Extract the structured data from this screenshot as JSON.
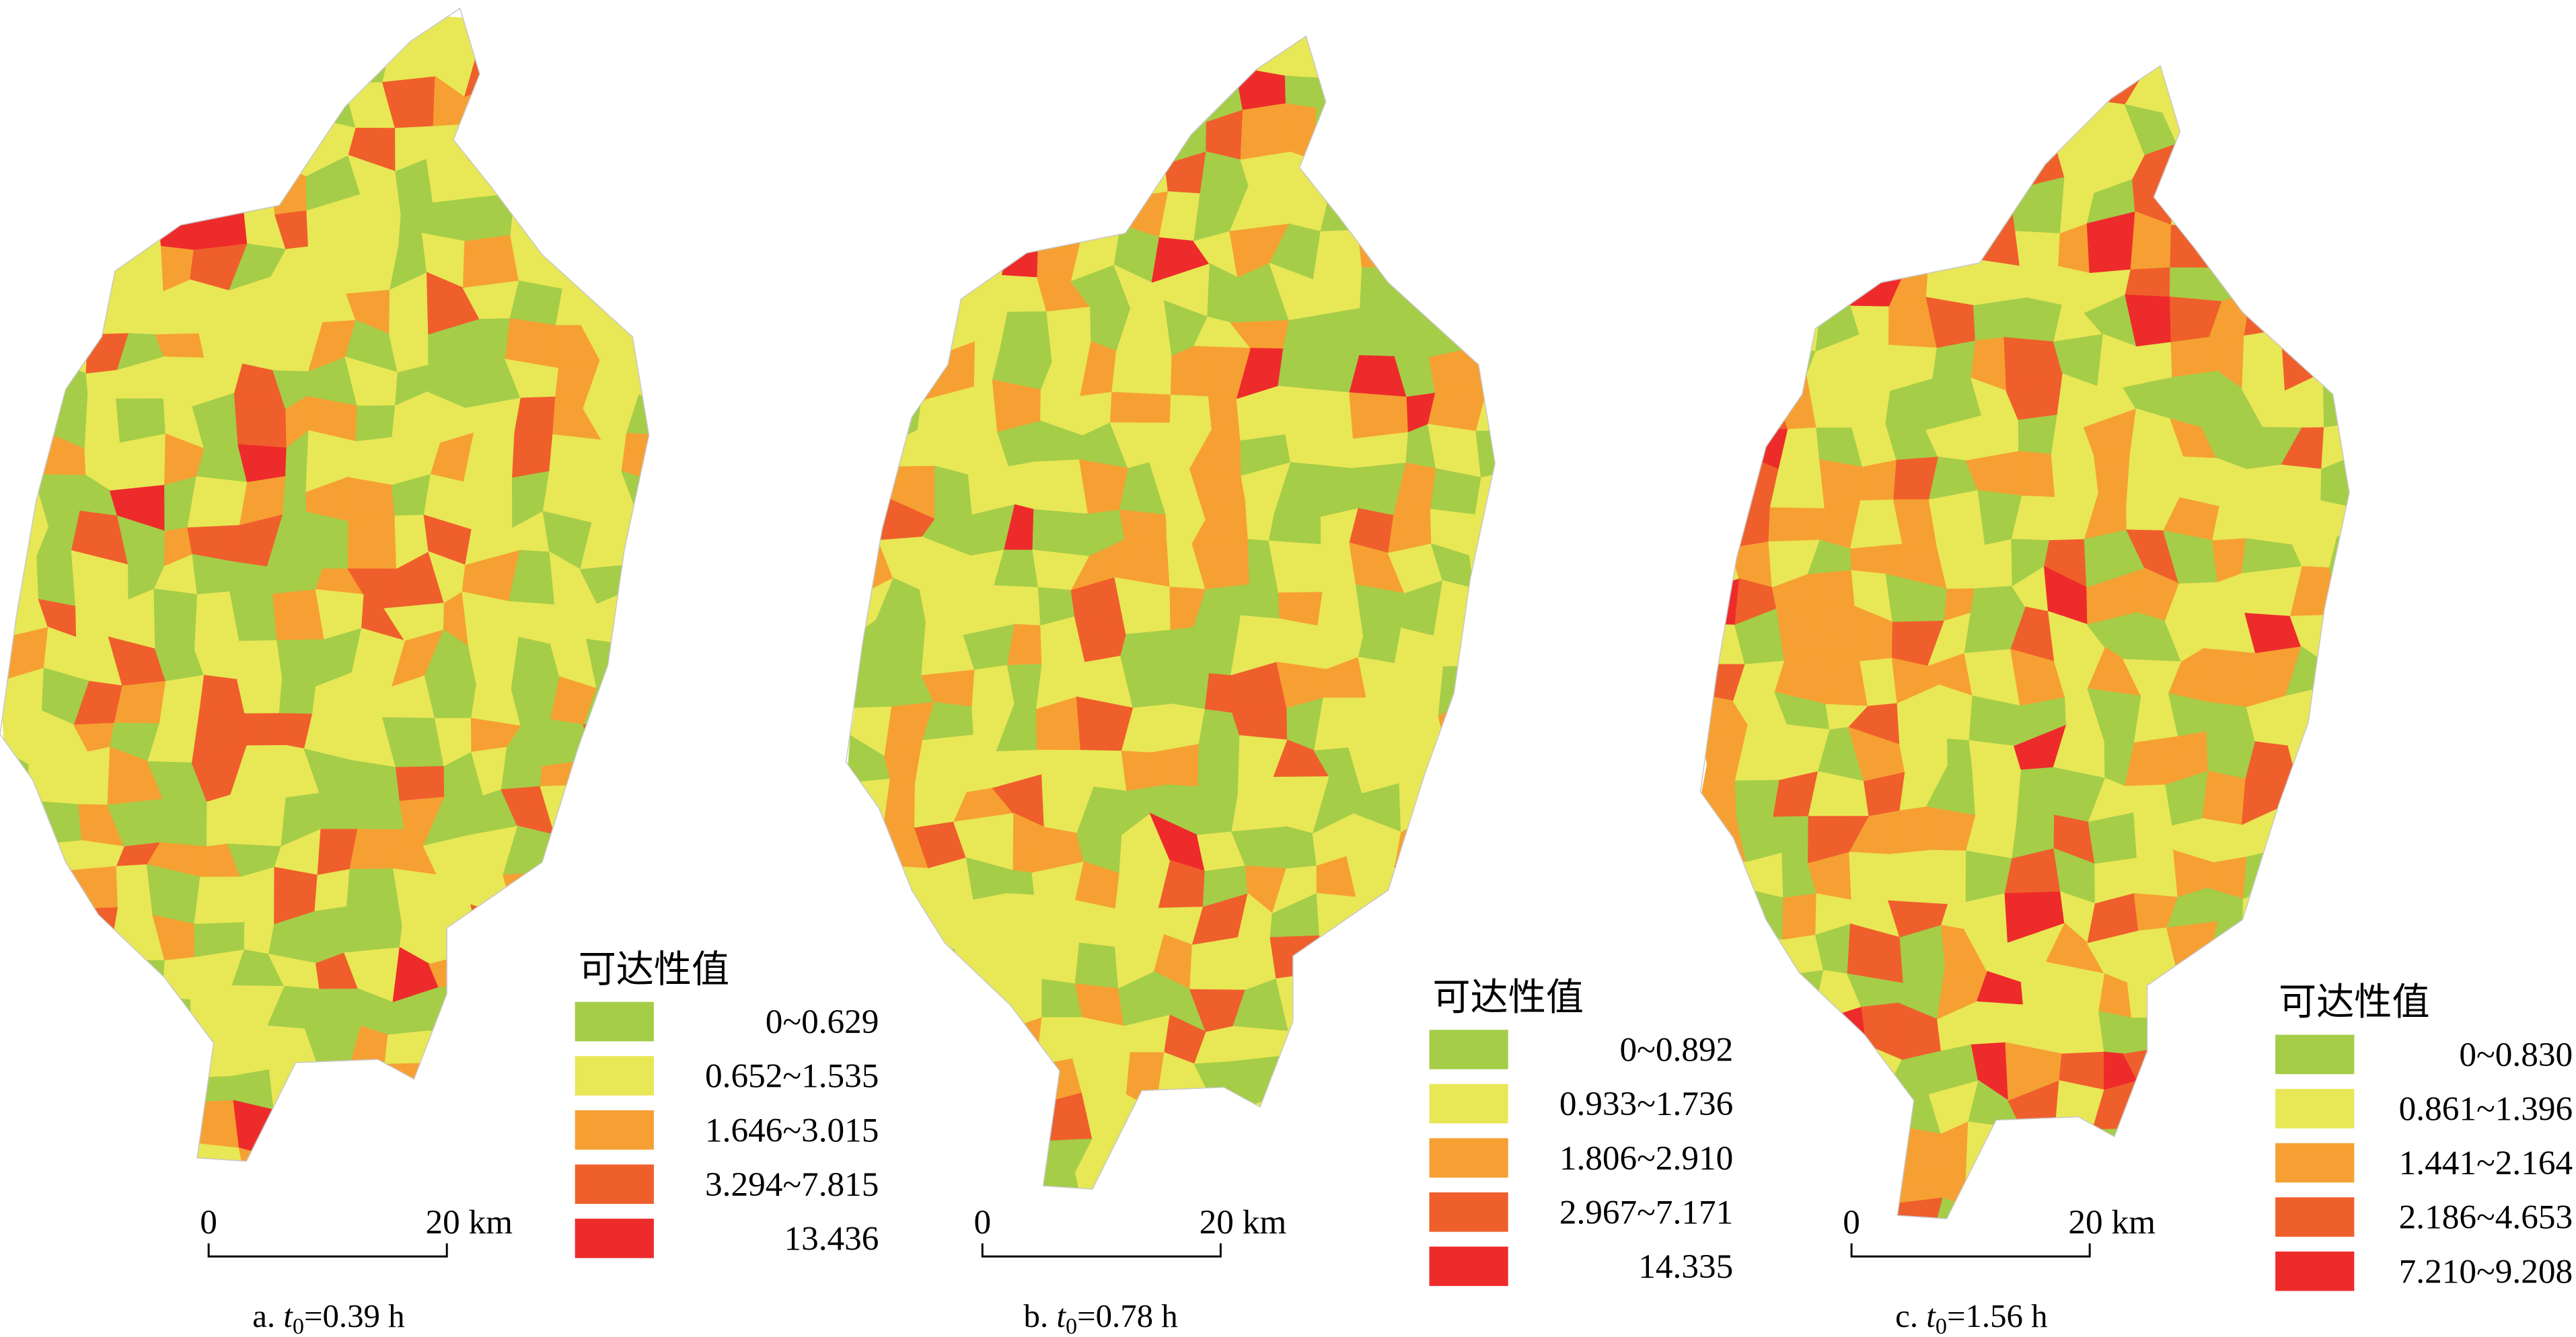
{
  "panels": [
    {
      "legend": {
        "title": "可达性值",
        "items": [
          {
            "label": "0~0.629",
            "color": "#a5cd48"
          },
          {
            "label": "0.652~1.535",
            "color": "#e8e756"
          },
          {
            "label": "1.646~3.015",
            "color": "#f6a033"
          },
          {
            "label": "3.294~7.815",
            "color": "#ef5f2b"
          },
          {
            "label": "13.436",
            "color": "#ee2b2b"
          }
        ]
      },
      "scale_bar": {
        "start": "0",
        "end": "20 km"
      },
      "caption": {
        "prefix": "a.",
        "variable": "t",
        "subscript": "0",
        "suffix": "=0.39 h"
      }
    },
    {
      "legend": {
        "title": "可达性值",
        "items": [
          {
            "label": "0~0.892",
            "color": "#a5cd48"
          },
          {
            "label": "0.933~1.736",
            "color": "#e8e756"
          },
          {
            "label": "1.806~2.910",
            "color": "#f6a033"
          },
          {
            "label": "2.967~7.171",
            "color": "#ef5f2b"
          },
          {
            "label": "14.335",
            "color": "#ee2b2b"
          }
        ]
      },
      "scale_bar": {
        "start": "0",
        "end": "20 km"
      },
      "caption": {
        "prefix": "b.",
        "variable": "t",
        "subscript": "0",
        "suffix": "=0.78 h"
      }
    },
    {
      "legend": {
        "title": "可达性值",
        "items": [
          {
            "label": "0~0.830",
            "color": "#a5cd48"
          },
          {
            "label": "0.861~1.396",
            "color": "#e8e756"
          },
          {
            "label": "1.441~2.164",
            "color": "#f6a033"
          },
          {
            "label": "2.186~4.653",
            "color": "#ef5f2b"
          },
          {
            "label": "7.210~9.208",
            "color": "#ee2b2b"
          }
        ]
      },
      "scale_bar": {
        "start": "0",
        "end": "20 km"
      },
      "caption": {
        "prefix": "c.",
        "variable": "t",
        "subscript": "0",
        "suffix": "=1.56 h"
      }
    }
  ]
}
